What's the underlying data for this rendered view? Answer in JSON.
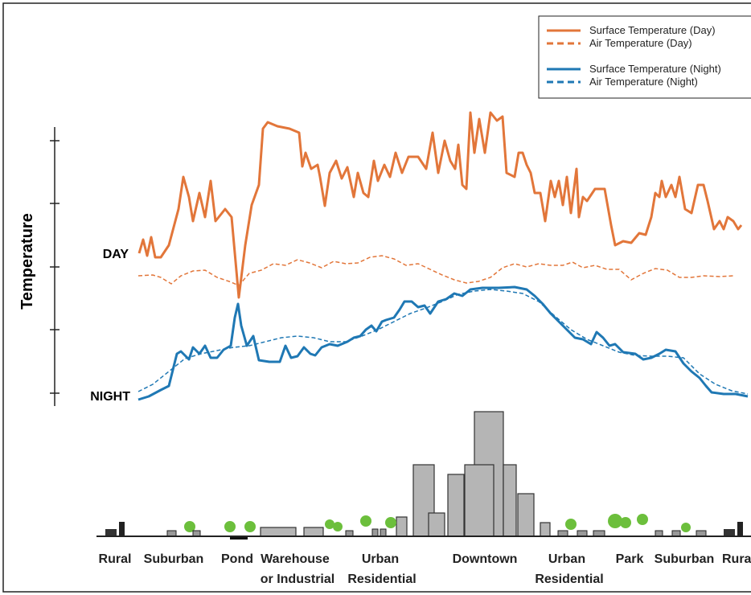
{
  "legend": {
    "items": [
      "Surface Temperature (Day)",
      "Air Temperature  (Day)",
      "Surface Temperature (Night)",
      "Air Temperature (Night)"
    ]
  },
  "y_axis_label": "Temperature",
  "level_labels": [
    "DAY",
    "NIGHT"
  ],
  "zones": [
    [
      "Rural"
    ],
    [
      "Suburban"
    ],
    [
      "Pond"
    ],
    [
      "Warehouse",
      "or Industrial"
    ],
    [
      "Urban",
      "Residential"
    ],
    [
      "Downtown"
    ],
    [
      "Urban",
      "Residential"
    ],
    [
      "Park"
    ],
    [
      "Suburban"
    ],
    [
      "Rural"
    ]
  ]
}
